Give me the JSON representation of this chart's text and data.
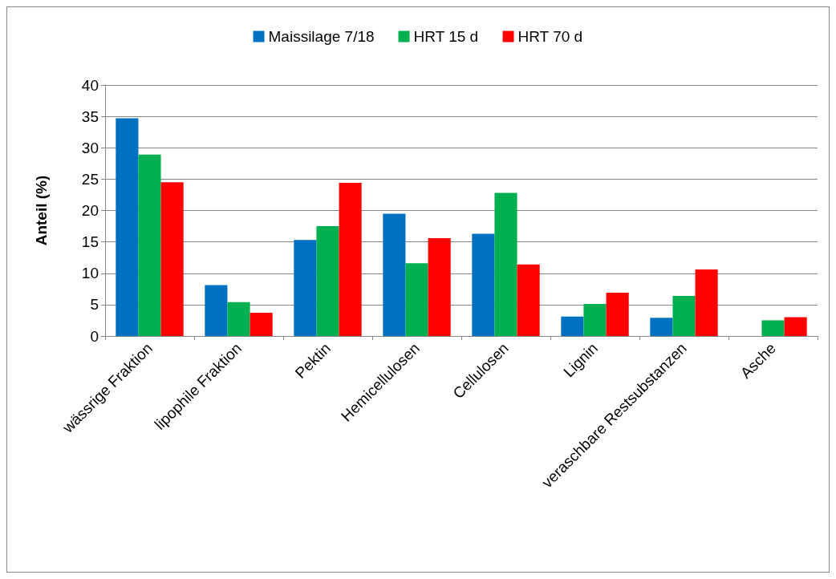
{
  "chart_data": {
    "type": "bar",
    "ylabel": "Anteil (%)",
    "categories": [
      "wässrige Fraktion",
      "lipophile Fraktion",
      "Pektin",
      "Hemicellulosen",
      "Cellulosen",
      "Lignin",
      "veraschbare Restsubstanzen",
      "Asche"
    ],
    "series": [
      {
        "name": "Maissilage 7/18",
        "color": "#0070c0",
        "values": [
          34.7,
          8.1,
          15.3,
          19.5,
          16.3,
          3.1,
          2.9,
          null
        ]
      },
      {
        "name": "HRT 15 d",
        "color": "#00b050",
        "values": [
          28.9,
          5.4,
          17.5,
          11.6,
          22.8,
          5.1,
          6.4,
          2.5
        ]
      },
      {
        "name": "HRT 70 d",
        "color": "#ff0000",
        "values": [
          24.5,
          3.7,
          24.4,
          15.6,
          11.4,
          6.9,
          10.6,
          3.0
        ]
      }
    ],
    "ylim": [
      0,
      40
    ],
    "yticks": [
      0,
      5,
      10,
      15,
      20,
      25,
      30,
      35,
      40
    ],
    "grid": "y",
    "legend": "top"
  }
}
